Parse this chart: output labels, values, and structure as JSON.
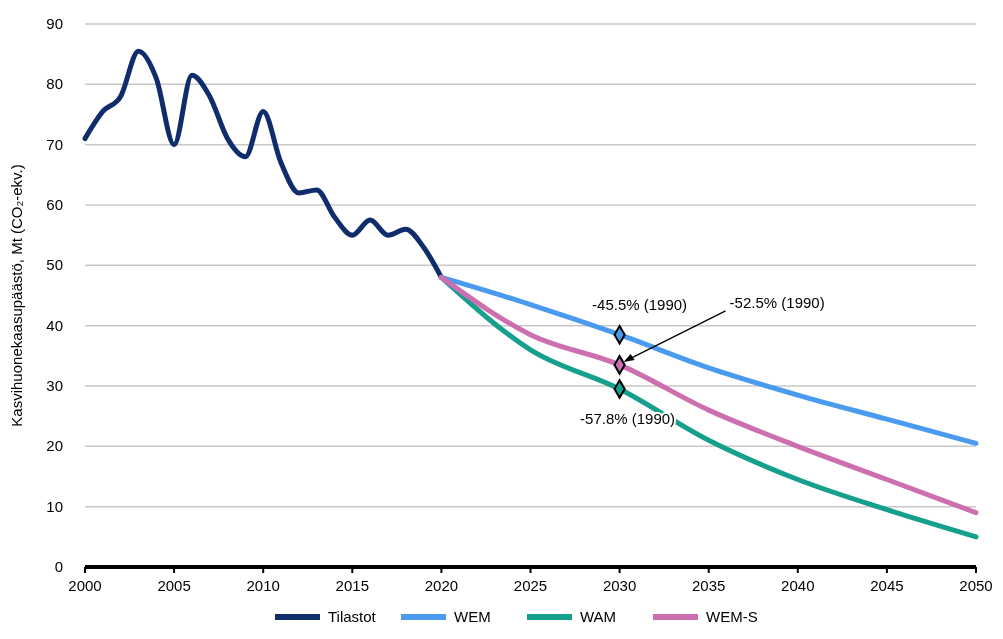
{
  "chart_data": {
    "type": "line",
    "ylabel": "Kasvihuonekaasupäästö, Mt (CO₂-ekv.)",
    "xlim": [
      2000,
      2050
    ],
    "xticks": [
      2000,
      2005,
      2010,
      2015,
      2020,
      2025,
      2030,
      2035,
      2040,
      2045,
      2050
    ],
    "ylim": [
      0,
      90
    ],
    "yticks": [
      0,
      10,
      20,
      30,
      40,
      50,
      60,
      70,
      80,
      90
    ],
    "grid": "y",
    "legend": "bottom",
    "line_style": "solid",
    "series": [
      {
        "name": "Tilastot",
        "color": "#0f2d6b",
        "x": [
          2000,
          2001,
          2002,
          2003,
          2004,
          2005,
          2006,
          2007,
          2008,
          2009,
          2010,
          2011,
          2012,
          2013,
          2014,
          2015,
          2016,
          2017,
          2018,
          2019,
          2020
        ],
        "values": [
          71,
          75.5,
          78,
          85.5,
          81,
          70,
          81.5,
          78,
          71,
          68,
          75.5,
          67,
          62,
          62.5,
          58,
          55,
          57.5,
          55,
          56,
          53,
          48
        ]
      },
      {
        "name": "WEM",
        "color": "#4a9bf0",
        "x": [
          2020,
          2025,
          2030,
          2035,
          2040,
          2045,
          2050
        ],
        "values": [
          48,
          43.5,
          38.5,
          33,
          28.5,
          24.5,
          20.5
        ]
      },
      {
        "name": "WAM",
        "color": "#14a08c",
        "x": [
          2020,
          2025,
          2030,
          2035,
          2040,
          2045,
          2050
        ],
        "values": [
          48,
          36,
          29.5,
          21,
          14.5,
          9.5,
          5
        ]
      },
      {
        "name": "WEM-S",
        "color": "#cc6fb0",
        "x": [
          2020,
          2025,
          2030,
          2035,
          2040,
          2045,
          2050
        ],
        "values": [
          48,
          38.5,
          33.5,
          26,
          20,
          14.5,
          9
        ]
      },
      {
        "type": "scatter",
        "marker": "diamond",
        "colors": [
          "#4a9bf0",
          "#cc6fb0",
          "#14a08c"
        ],
        "x": [
          2030,
          2030,
          2030
        ],
        "values": [
          38.5,
          33.5,
          29.5
        ]
      }
    ],
    "annotations": [
      "-45.5% (1990)",
      "-52.5% (1990)",
      "-57.8% (1990)"
    ]
  }
}
